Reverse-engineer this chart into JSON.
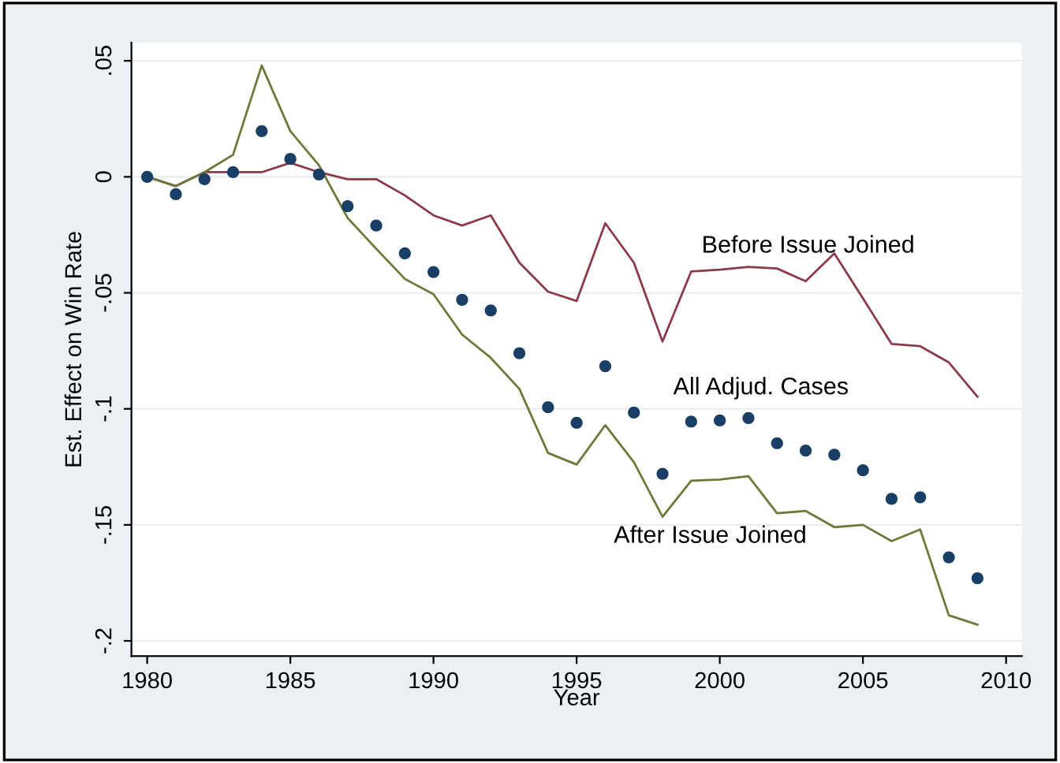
{
  "chart_data": {
    "type": "line",
    "xlabel": "Year",
    "ylabel": "Est. Effect on Win Rate",
    "x": [
      1980,
      1981,
      1982,
      1983,
      1984,
      1985,
      1986,
      1987,
      1988,
      1989,
      1990,
      1991,
      1992,
      1993,
      1994,
      1995,
      1996,
      1997,
      1998,
      1999,
      2000,
      2001,
      2002,
      2003,
      2004,
      2005,
      2006,
      2007,
      2008,
      2009
    ],
    "series": [
      {
        "name": "Before Issue Joined",
        "color": "#8b3a4a",
        "values": [
          0,
          -0.004,
          0.002,
          0.002,
          0.002,
          0.006,
          0.002,
          -0.001,
          -0.001,
          -0.008,
          -0.0166,
          -0.021,
          -0.0166,
          -0.037,
          -0.0495,
          -0.0535,
          -0.02,
          -0.037,
          -0.071,
          -0.0408,
          -0.04,
          -0.0388,
          -0.0395,
          -0.045,
          -0.033,
          -0.0524,
          -0.072,
          -0.073,
          -0.08,
          -0.0948
        ]
      },
      {
        "name": "All Adjud. Cases",
        "type": "scatter",
        "marker": "circle",
        "color": "#1a3f66",
        "values": [
          0,
          -0.0075,
          -0.001,
          0.002,
          0.0197,
          0.0077,
          0.001,
          -0.0127,
          -0.021,
          -0.033,
          -0.041,
          -0.053,
          -0.0576,
          -0.076,
          -0.0993,
          -0.106,
          -0.0816,
          -0.1016,
          -0.128,
          -0.1055,
          -0.105,
          -0.104,
          -0.1148,
          -0.118,
          -0.1198,
          -0.1265,
          -0.1388,
          -0.1381,
          -0.164,
          -0.173
        ]
      },
      {
        "name": "After Issue Joined",
        "color": "#6b7a3a",
        "values": [
          0,
          -0.004,
          0.002,
          0.0095,
          0.048,
          0.0197,
          0.005,
          -0.0177,
          -0.031,
          -0.044,
          -0.0506,
          -0.068,
          -0.078,
          -0.0914,
          -0.119,
          -0.124,
          -0.107,
          -0.123,
          -0.1465,
          -0.131,
          -0.1305,
          -0.129,
          -0.145,
          -0.144,
          -0.151,
          -0.15,
          -0.157,
          -0.152,
          -0.189,
          -0.193
        ]
      }
    ],
    "xlim": [
      1979.45,
      2010.55
    ],
    "xticks": [
      1980,
      1985,
      1990,
      1995,
      2000,
      2005,
      2010
    ],
    "ylim": [
      -0.2066,
      0.0578
    ],
    "yticks": [
      {
        "value": -0.2,
        "label": "-.2"
      },
      {
        "value": -0.15,
        "label": "-.15"
      },
      {
        "value": -0.1,
        "label": "-.1"
      },
      {
        "value": -0.05,
        "label": "-.05"
      },
      {
        "value": 0,
        "label": "0"
      },
      {
        "value": 0.05,
        "label": ".05"
      }
    ],
    "grid": "y",
    "line_style": "solid"
  }
}
